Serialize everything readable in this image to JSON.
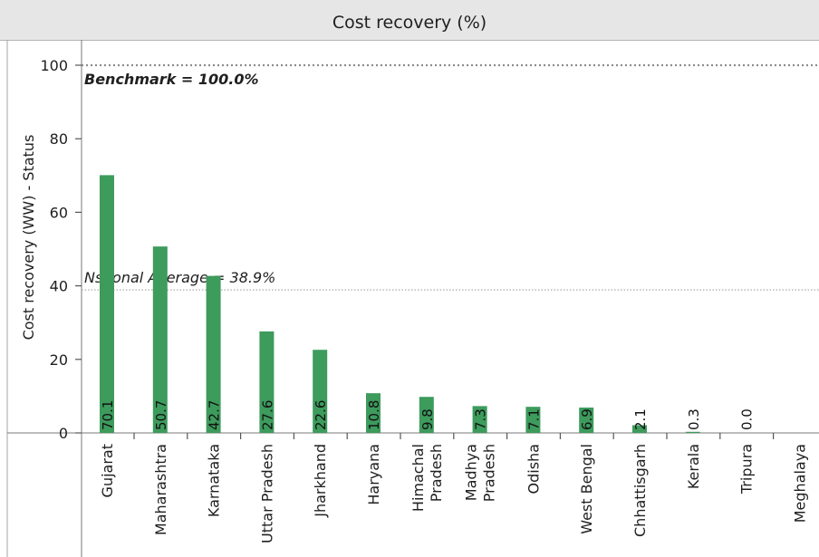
{
  "chart_data": {
    "type": "bar",
    "title": "Cost recovery (%)",
    "ylabel": "Cost recovery (WW) - Status",
    "xlabel": "",
    "ylim": [
      0,
      100
    ],
    "yticks": [
      0,
      20,
      40,
      60,
      80,
      100
    ],
    "categories": [
      "Gujarat",
      "Maharashtra",
      "Karnataka",
      "Uttar Pradesh",
      "Jharkhand",
      "Haryana",
      "Himachal Pradesh",
      "Madhya Pradesh",
      "Odisha",
      "West Bengal",
      "Chhattisgarh",
      "Kerala",
      "Tripura",
      "Meghalaya"
    ],
    "category_label_lines": [
      [
        "Gujarat"
      ],
      [
        "Maharashtra"
      ],
      [
        "Karnataka"
      ],
      [
        "Uttar Pradesh"
      ],
      [
        "Jharkhand"
      ],
      [
        "Haryana"
      ],
      [
        "Himachal",
        "Pradesh"
      ],
      [
        "Madhya",
        "Pradesh"
      ],
      [
        "Odisha"
      ],
      [
        "West Bengal"
      ],
      [
        "Chhattisgarh"
      ],
      [
        "Kerala"
      ],
      [
        "Tripura"
      ],
      [
        "Meghalaya"
      ]
    ],
    "values": [
      70.1,
      50.7,
      42.7,
      27.6,
      22.6,
      10.8,
      9.8,
      7.3,
      7.1,
      6.9,
      2.1,
      0.3,
      0.0,
      null
    ],
    "value_labels": [
      "70.1",
      "50.7",
      "42.7",
      "27.6",
      "22.6",
      "10.8",
      "9.8",
      "7.3",
      "7.1",
      "6.9",
      "2.1",
      "0.3",
      "0.0",
      ""
    ],
    "bar_color": "#3d9b5c",
    "reference_lines": [
      {
        "value": 100.0,
        "label": "Benchmark = 100.0%",
        "style": "dotted",
        "emphasis": "bold-italic"
      },
      {
        "value": 38.9,
        "label": "Nstional Average = 38.9%",
        "style": "dotted",
        "emphasis": "italic"
      }
    ],
    "grid": false,
    "legend": "none"
  }
}
